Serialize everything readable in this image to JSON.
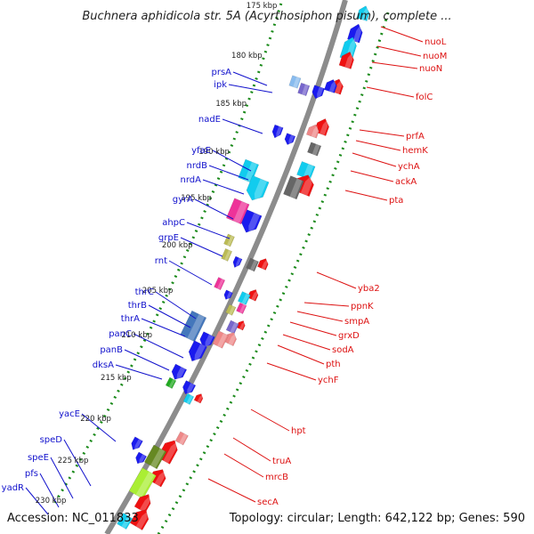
{
  "title": "Buchnera aphidicola str. 5A (Acyrthosiphon pisum), complete ...",
  "accession": "Accession: NC_011833",
  "summary": "Topology: circular; Length: 642,122 bp; Genes: 590",
  "colors": {
    "backbone": "#888888",
    "tick": "#1a8a1a",
    "forward_label": "#1111cc",
    "reverse_label": "#dd1111"
  },
  "kbp_labels": [
    "175 kbp",
    "180 kbp",
    "185 kbp",
    "190 kbp",
    "195 kbp",
    "200 kbp",
    "205 kbp",
    "210 kbp",
    "215 kbp",
    "220 kbp",
    "225 kbp",
    "230 kbp"
  ],
  "left_genes": [
    "prsA",
    "ipk",
    "nadE",
    "yfaE",
    "nrdB",
    "nrdA",
    "gyrA",
    "ahpC",
    "grpE",
    "rnt",
    "thrC",
    "thrB",
    "thrA",
    "panC",
    "panB",
    "dksA",
    "yacE",
    "speD",
    "speE",
    "pfs",
    "yadR"
  ],
  "right_genes": [
    "nuoL",
    "nuoM",
    "nuoN",
    "folC",
    "prfA",
    "hemK",
    "ychA",
    "ackA",
    "pta",
    "yba2",
    "ppnK",
    "smpA",
    "grxD",
    "sodA",
    "pth",
    "ychF",
    "hpt",
    "truA",
    "mrcB",
    "secA"
  ]
}
